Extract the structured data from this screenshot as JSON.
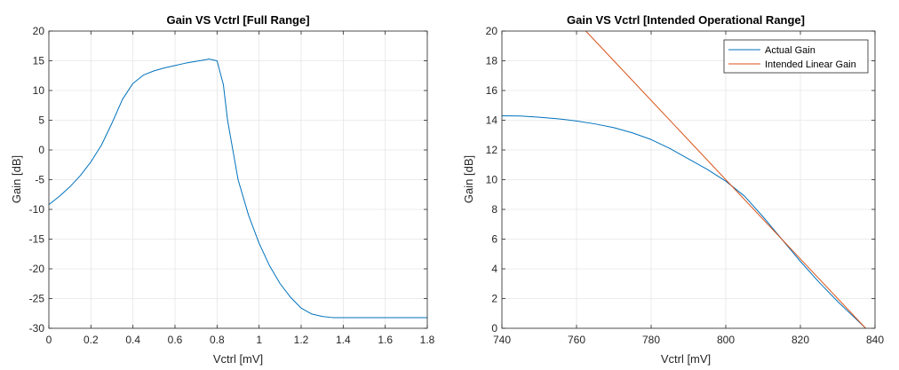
{
  "chart_data": [
    {
      "type": "line",
      "title": "Gain VS Vctrl [Full Range]",
      "xlabel": "Vctrl [mV]",
      "ylabel": "Gain [dB]",
      "xlim": [
        0,
        1.8
      ],
      "ylim": [
        -30,
        20
      ],
      "xticks": [
        0,
        0.2,
        0.4,
        0.6,
        0.8,
        1,
        1.2,
        1.4,
        1.6,
        1.8
      ],
      "xtick_labels": [
        "0",
        "0.2",
        "0.4",
        "0.6",
        "0.8",
        "1",
        "1.2",
        "1.4",
        "1.6",
        "1.8"
      ],
      "yticks": [
        -30,
        -25,
        -20,
        -15,
        -10,
        -5,
        0,
        5,
        10,
        15,
        20
      ],
      "ytick_labels": [
        "-30",
        "-25",
        "-20",
        "-15",
        "-10",
        "-5",
        "0",
        "5",
        "10",
        "15",
        "20"
      ],
      "grid": true,
      "legend": null,
      "series": [
        {
          "color": "#0072BD",
          "x": [
            0,
            0.05,
            0.1,
            0.15,
            0.2,
            0.25,
            0.3,
            0.35,
            0.4,
            0.45,
            0.5,
            0.55,
            0.6,
            0.65,
            0.7,
            0.75,
            0.76,
            0.8,
            0.83,
            0.85,
            0.88,
            0.9,
            0.95,
            1.0,
            1.05,
            1.1,
            1.15,
            1.2,
            1.25,
            1.3,
            1.35,
            1.4,
            1.5,
            1.6,
            1.7,
            1.8
          ],
          "y": [
            -9.2,
            -7.8,
            -6.2,
            -4.3,
            -2.0,
            0.8,
            4.5,
            8.5,
            11.2,
            12.6,
            13.3,
            13.8,
            14.2,
            14.6,
            14.9,
            15.2,
            15.3,
            15.0,
            11.0,
            5.0,
            -1.0,
            -5.0,
            -11.0,
            -15.7,
            -19.5,
            -22.5,
            -24.8,
            -26.6,
            -27.6,
            -28.0,
            -28.2,
            -28.2,
            -28.2,
            -28.2,
            -28.2,
            -28.2
          ]
        }
      ]
    },
    {
      "type": "line",
      "title": "Gain VS Vctrl [Intended Operational Range]",
      "xlabel": "Vctrl [mV]",
      "ylabel": "Gain [dB]",
      "xlim": [
        740,
        840
      ],
      "ylim": [
        0,
        20
      ],
      "xticks": [
        740,
        760,
        780,
        800,
        820,
        840
      ],
      "xtick_labels": [
        "740",
        "760",
        "780",
        "800",
        "820",
        "840"
      ],
      "yticks": [
        0,
        2,
        4,
        6,
        8,
        10,
        12,
        14,
        16,
        18,
        20
      ],
      "ytick_labels": [
        "0",
        "2",
        "4",
        "6",
        "8",
        "10",
        "12",
        "14",
        "16",
        "18",
        "20"
      ],
      "grid": true,
      "legend": "top-right",
      "series": [
        {
          "name": "Actual Gain",
          "color": "#0072BD",
          "x": [
            740,
            745,
            750,
            755,
            760,
            765,
            770,
            775,
            780,
            785,
            790,
            795,
            800,
            805,
            810,
            815,
            820,
            825,
            830,
            835,
            837.5
          ],
          "y": [
            14.3,
            14.28,
            14.2,
            14.1,
            13.95,
            13.75,
            13.5,
            13.15,
            12.7,
            12.1,
            11.4,
            10.7,
            9.9,
            8.9,
            7.5,
            6.0,
            4.5,
            3.1,
            1.8,
            0.6,
            0.0
          ]
        },
        {
          "name": "Intended Linear Gain",
          "color": "#D95319",
          "x": [
            762.5,
            837.5
          ],
          "y": [
            20,
            0
          ]
        }
      ]
    }
  ]
}
